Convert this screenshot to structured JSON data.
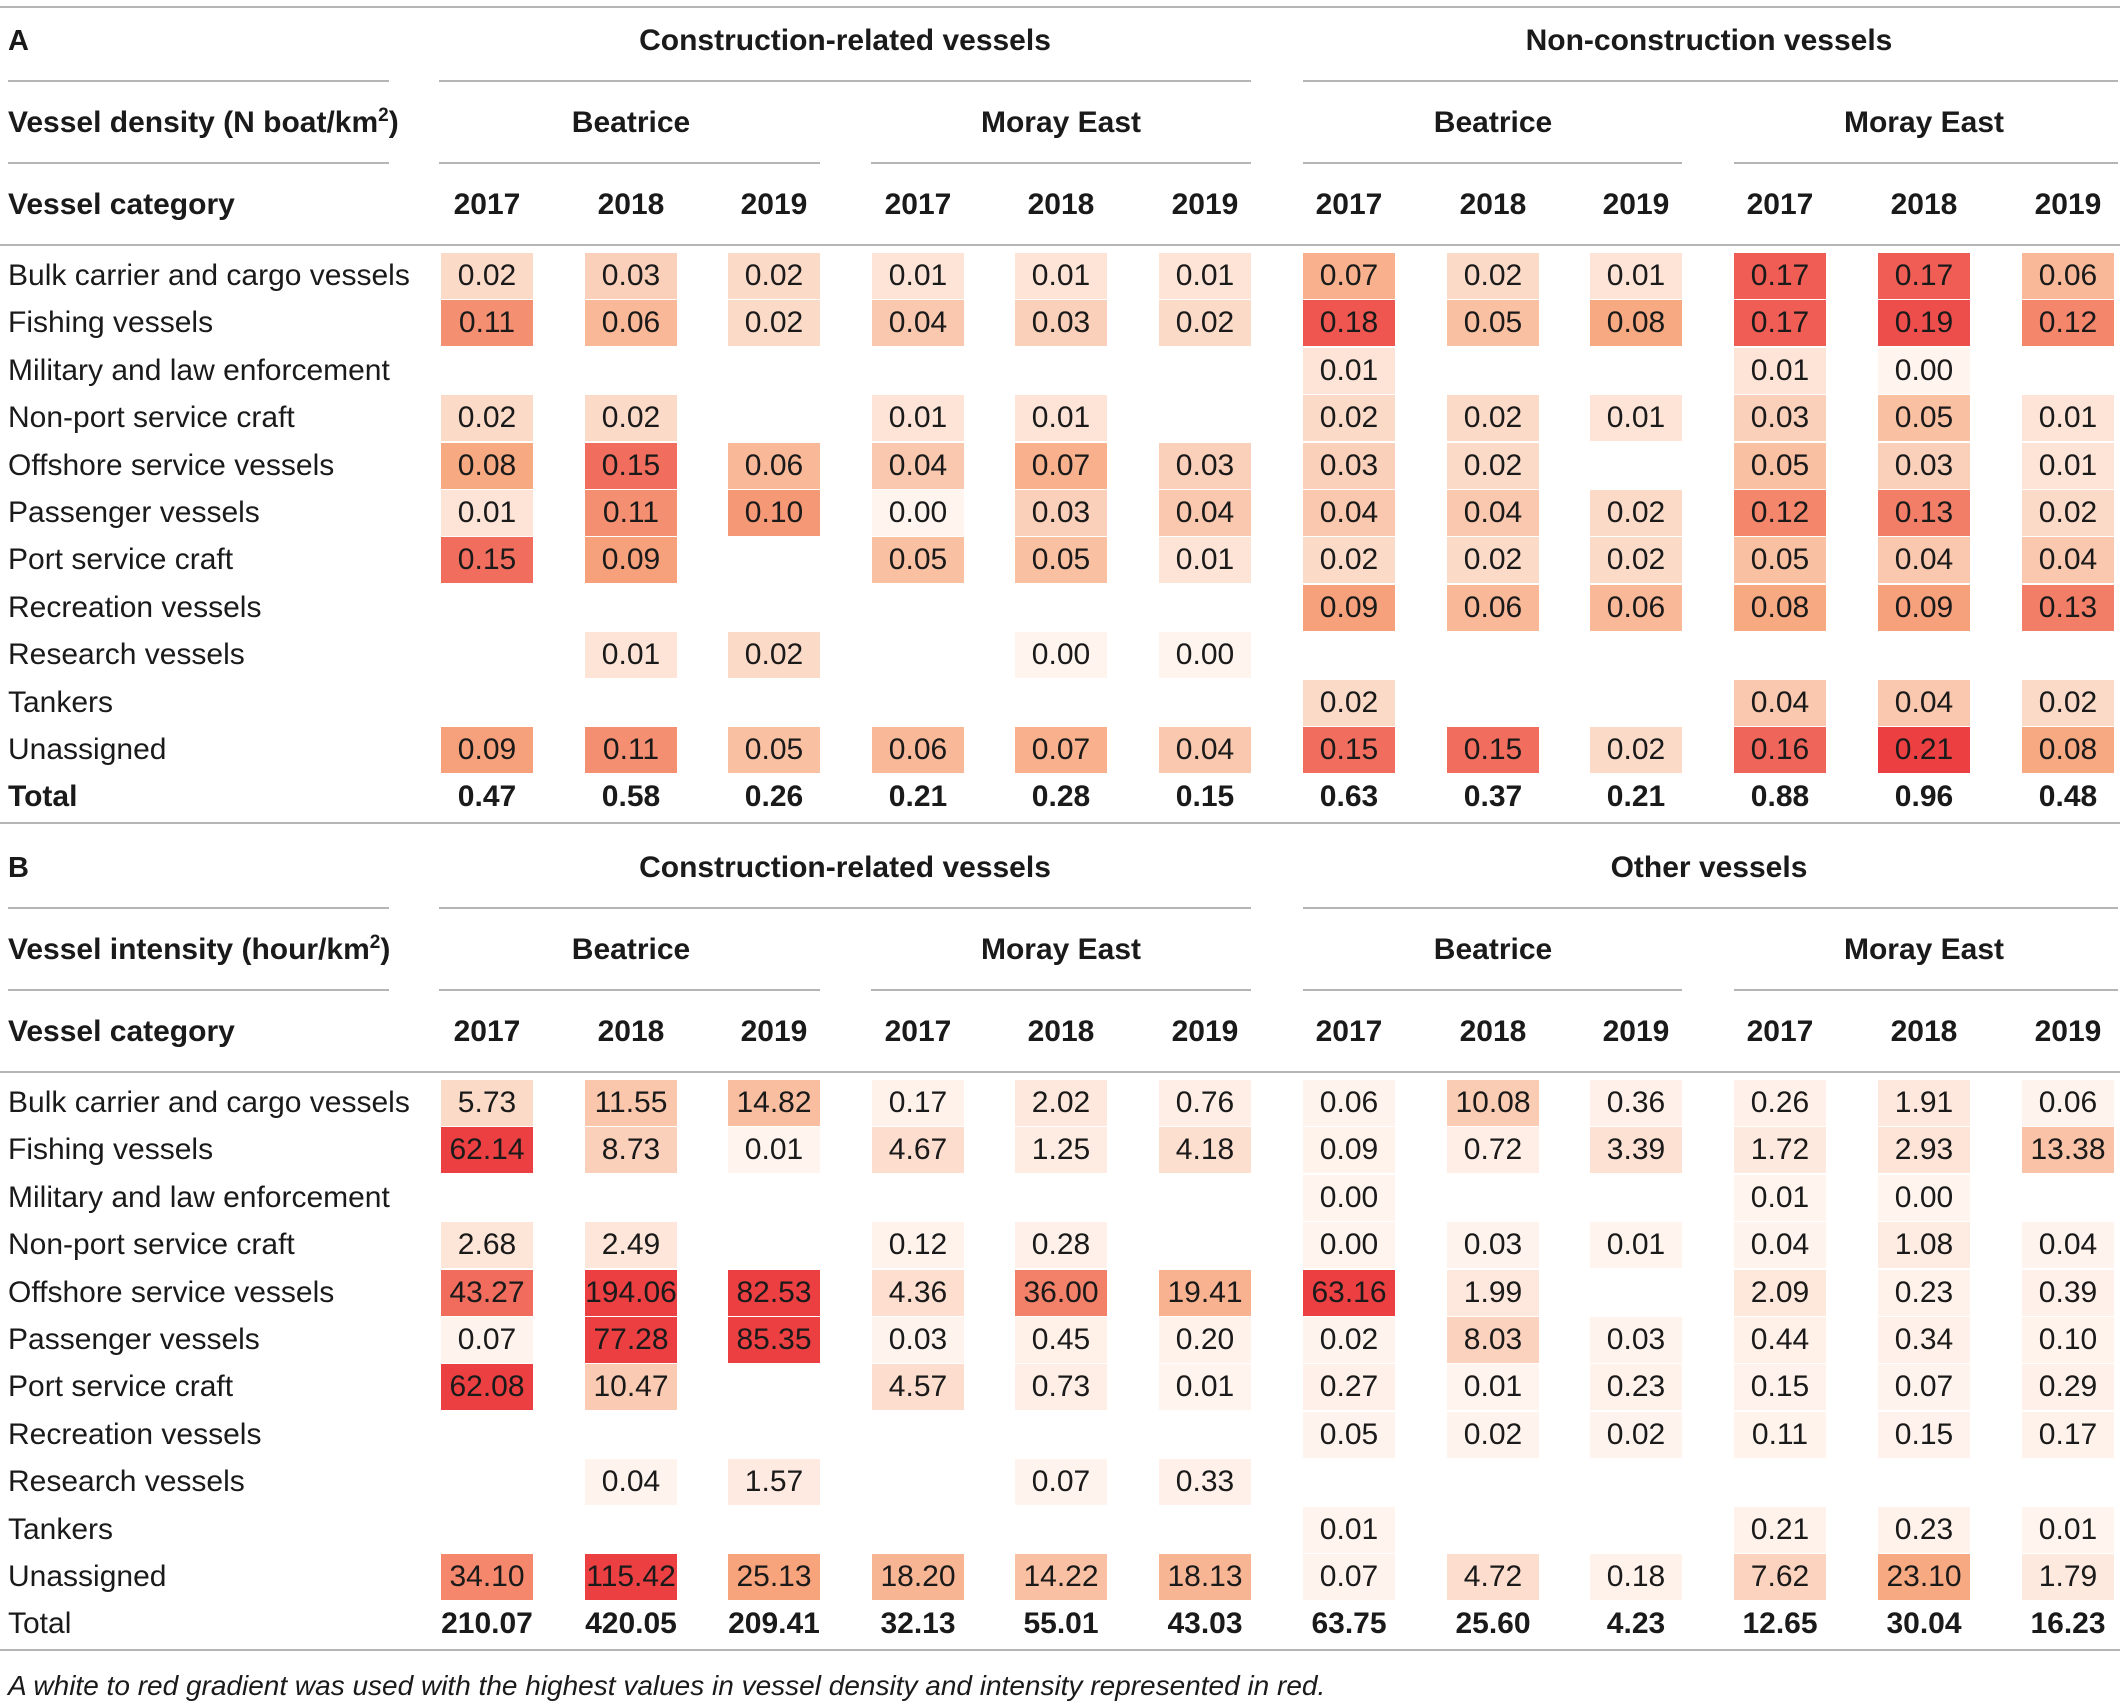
{
  "years": [
    "2017",
    "2018",
    "2019"
  ],
  "sites": [
    "Beatrice",
    "Moray East"
  ],
  "row_labels": [
    "Bulk carrier and cargo vessels",
    "Fishing vessels",
    "Military and law enforcement",
    "Non-port service craft",
    "Offshore service vessels",
    "Passenger vessels",
    "Port service craft",
    "Recreation vessels",
    "Research vessels",
    "Tankers",
    "Unassigned"
  ],
  "category_header": "Vessel category",
  "heat_colors": {
    "low": "#fff4ee",
    "mid": "#f7a77f",
    "high": "#ec3f42"
  },
  "panels": [
    {
      "label": "A",
      "metric_label": "Vessel density (N boat/km",
      "metric_sup": "2",
      "metric_close": ")",
      "group_titles": [
        "Construction-related vessels",
        "Non-construction vessels"
      ],
      "total_label": "Total",
      "total_label_bold": true,
      "max_value": 0.21,
      "rows": [
        [
          "0.02",
          "0.03",
          "0.02",
          "0.01",
          "0.01",
          "0.01",
          "0.07",
          "0.02",
          "0.01",
          "0.17",
          "0.17",
          "0.06"
        ],
        [
          "0.11",
          "0.06",
          "0.02",
          "0.04",
          "0.03",
          "0.02",
          "0.18",
          "0.05",
          "0.08",
          "0.17",
          "0.19",
          "0.12"
        ],
        [
          "",
          "",
          "",
          "",
          "",
          "",
          "0.01",
          "",
          "",
          "0.01",
          "0.00",
          ""
        ],
        [
          "0.02",
          "0.02",
          "",
          "0.01",
          "0.01",
          "",
          "0.02",
          "0.02",
          "0.01",
          "0.03",
          "0.05",
          "0.01"
        ],
        [
          "0.08",
          "0.15",
          "0.06",
          "0.04",
          "0.07",
          "0.03",
          "0.03",
          "0.02",
          "",
          "0.05",
          "0.03",
          "0.01"
        ],
        [
          "0.01",
          "0.11",
          "0.10",
          "0.00",
          "0.03",
          "0.04",
          "0.04",
          "0.04",
          "0.02",
          "0.12",
          "0.13",
          "0.02"
        ],
        [
          "0.15",
          "0.09",
          "",
          "0.05",
          "0.05",
          "0.01",
          "0.02",
          "0.02",
          "0.02",
          "0.05",
          "0.04",
          "0.04"
        ],
        [
          "",
          "",
          "",
          "",
          "",
          "",
          "0.09",
          "0.06",
          "0.06",
          "0.08",
          "0.09",
          "0.13"
        ],
        [
          "",
          "0.01",
          "0.02",
          "",
          "0.00",
          "0.00",
          "",
          "",
          "",
          "",
          "",
          ""
        ],
        [
          "",
          "",
          "",
          "",
          "",
          "",
          "0.02",
          "",
          "",
          "0.04",
          "0.04",
          "0.02"
        ],
        [
          "0.09",
          "0.11",
          "0.05",
          "0.06",
          "0.07",
          "0.04",
          "0.15",
          "0.15",
          "0.02",
          "0.16",
          "0.21",
          "0.08"
        ]
      ],
      "totals": [
        "0.47",
        "0.58",
        "0.26",
        "0.21",
        "0.28",
        "0.15",
        "0.63",
        "0.37",
        "0.21",
        "0.88",
        "0.96",
        "0.48"
      ]
    },
    {
      "label": "B",
      "metric_label": "Vessel intensity (hour/km",
      "metric_sup": "2",
      "metric_close": ")",
      "group_titles": [
        "Construction-related vessels",
        "Other vessels"
      ],
      "total_label": "Total",
      "total_label_bold": false,
      "max_value": 60,
      "rows": [
        [
          "5.73",
          "11.55",
          "14.82",
          "0.17",
          "2.02",
          "0.76",
          "0.06",
          "10.08",
          "0.36",
          "0.26",
          "1.91",
          "0.06"
        ],
        [
          "62.14",
          "8.73",
          "0.01",
          "4.67",
          "1.25",
          "4.18",
          "0.09",
          "0.72",
          "3.39",
          "1.72",
          "2.93",
          "13.38"
        ],
        [
          "",
          "",
          "",
          "",
          "",
          "",
          "0.00",
          "",
          "",
          "0.01",
          "0.00",
          ""
        ],
        [
          "2.68",
          "2.49",
          "",
          "0.12",
          "0.28",
          "",
          "0.00",
          "0.03",
          "0.01",
          "0.04",
          "1.08",
          "0.04"
        ],
        [
          "43.27",
          "194.06",
          "82.53",
          "4.36",
          "36.00",
          "19.41",
          "63.16",
          "1.99",
          "",
          "2.09",
          "0.23",
          "0.39"
        ],
        [
          "0.07",
          "77.28",
          "85.35",
          "0.03",
          "0.45",
          "0.20",
          "0.02",
          "8.03",
          "0.03",
          "0.44",
          "0.34",
          "0.10"
        ],
        [
          "62.08",
          "10.47",
          "",
          "4.57",
          "0.73",
          "0.01",
          "0.27",
          "0.01",
          "0.23",
          "0.15",
          "0.07",
          "0.29"
        ],
        [
          "",
          "",
          "",
          "",
          "",
          "",
          "0.05",
          "0.02",
          "0.02",
          "0.11",
          "0.15",
          "0.17"
        ],
        [
          "",
          "0.04",
          "1.57",
          "",
          "0.07",
          "0.33",
          "",
          "",
          "",
          "",
          "",
          ""
        ],
        [
          "",
          "",
          "",
          "",
          "",
          "",
          "0.01",
          "",
          "",
          "0.21",
          "0.23",
          "0.01"
        ],
        [
          "34.10",
          "115.42",
          "25.13",
          "18.20",
          "14.22",
          "18.13",
          "0.07",
          "4.72",
          "0.18",
          "7.62",
          "23.10",
          "1.79"
        ]
      ],
      "totals": [
        "210.07",
        "420.05",
        "209.41",
        "32.13",
        "55.01",
        "43.03",
        "63.75",
        "25.60",
        "4.23",
        "12.65",
        "30.04",
        "16.23"
      ]
    }
  ],
  "footnote": "A white to red gradient was used with the highest values in vessel density and intensity represented in red."
}
